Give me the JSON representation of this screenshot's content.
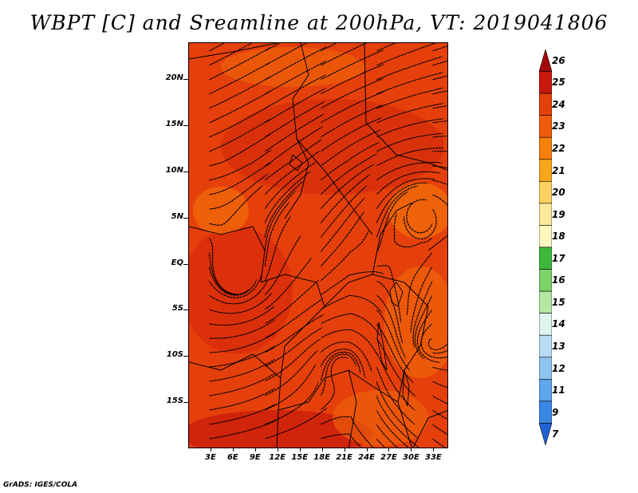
{
  "title": "WBPT [C] and Sreamline at 200hPa, VT: 2019041806",
  "footer": "GrADS: IGES/COLA",
  "map": {
    "lat_labels": [
      "20N",
      "15N",
      "10N",
      "5N",
      "EQ",
      "5S",
      "10S",
      "15S"
    ],
    "lat_values": [
      20,
      15,
      10,
      5,
      0,
      -5,
      -10,
      -15
    ],
    "lon_labels": [
      "3E",
      "6E",
      "9E",
      "12E",
      "15E",
      "18E",
      "21E",
      "24E",
      "27E",
      "30E",
      "33E"
    ],
    "lon_values": [
      3,
      6,
      9,
      12,
      15,
      18,
      21,
      24,
      27,
      30,
      33
    ],
    "lon_range": [
      0,
      35
    ],
    "lat_range": [
      -20,
      24
    ],
    "fill_dominant": "#e5400b"
  },
  "colorbar": {
    "labels": [
      "26",
      "25",
      "24",
      "23",
      "22",
      "21",
      "20",
      "19",
      "18",
      "17",
      "16",
      "15",
      "14",
      "13",
      "12",
      "11",
      "9",
      "7"
    ],
    "colors": [
      "#a50a0a",
      "#c8180c",
      "#e5400b",
      "#f05a0a",
      "#f7800a",
      "#f9a51c",
      "#fbd160",
      "#fde99a",
      "#fff5c0",
      "#3db83b",
      "#7bd36a",
      "#b4e6a4",
      "#dff3ef",
      "#b8dcf5",
      "#8ec4f0",
      "#5fa6ea",
      "#3a86e3",
      "#1f62d6"
    ]
  }
}
